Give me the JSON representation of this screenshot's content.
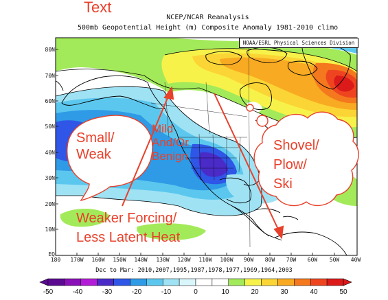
{
  "slide_title": "Text",
  "header": {
    "line1": "NCEP/NCAR Reanalysis",
    "line2": "500mb Geopotential Height (m) Composite Anomaly 1981-2010 climo"
  },
  "credit": "NOAA/ESRL Physical Sciences Division",
  "axes": {
    "lat_labels": [
      "80N",
      "70N",
      "60N",
      "50N",
      "40N",
      "30N",
      "20N",
      "10N",
      "EQ"
    ],
    "lon_labels": [
      "180",
      "170W",
      "160W",
      "150W",
      "140W",
      "130W",
      "120W",
      "110W",
      "100W",
      "90W",
      "80W",
      "70W",
      "60W",
      "50W",
      "40W"
    ]
  },
  "composite_years": "Dec to Mar: 2010,2007,1995,1987,1978,1977,1969,1964,2003",
  "colorbar": {
    "labels": [
      "-50",
      "-40",
      "-30",
      "-20",
      "-10",
      "0",
      "10",
      "20",
      "30",
      "40",
      "50"
    ],
    "colors": [
      "#5b0a91",
      "#8a10b8",
      "#b31cd6",
      "#4a2bc8",
      "#2f56e6",
      "#2f9ae6",
      "#5cc7ee",
      "#9ee2f4",
      "#d9f6fa",
      "#ffffff",
      "#ffffff",
      "#a3ea5a",
      "#f7f24a",
      "#fbd535",
      "#f8aa22",
      "#f4781d",
      "#ee4520",
      "#dc1a1a"
    ],
    "accent": "#e8402a"
  },
  "annotations": {
    "bubble_left": [
      "Small/",
      "Weak"
    ],
    "bubble_right": [
      "Shovel/",
      "Plow/",
      "Ski"
    ],
    "mild": [
      "Mild",
      "And/Or",
      "Benign"
    ],
    "forcing": [
      "Weaker Forcing/",
      "Less Latent Heat"
    ]
  }
}
